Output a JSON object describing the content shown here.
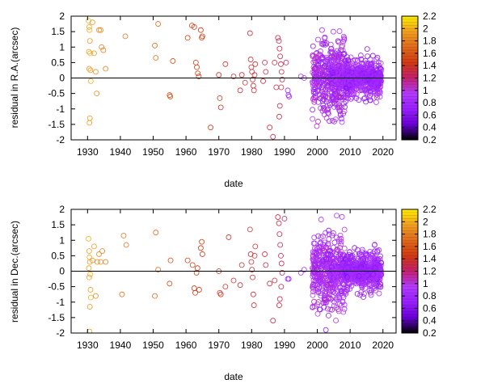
{
  "chart_data": [
    {
      "type": "scatter",
      "xlabel": "date",
      "ylabel": "residual in R.A.(arcsec)",
      "xlim": [
        1925,
        2024
      ],
      "ylim": [
        -2,
        2
      ],
      "xticks": [
        1930,
        1940,
        1950,
        1960,
        1970,
        1980,
        1990,
        2000,
        2010,
        2020
      ],
      "yticks": [
        -2,
        -1.5,
        -1,
        -0.5,
        0,
        0.5,
        1,
        1.5,
        2
      ],
      "zero_line": true,
      "grid": false,
      "marker": "open-circle",
      "colorbar": {
        "range": [
          0.2,
          2.2
        ],
        "ticks": [
          0.2,
          0.4,
          0.6,
          0.8,
          1,
          1.2,
          1.4,
          1.6,
          1.8,
          2,
          2.2
        ],
        "palette": [
          "#000000",
          "#6a00d8",
          "#9a20ff",
          "#b33bff",
          "#c4206e",
          "#d03a10",
          "#e06a1c",
          "#f0a020",
          "#ffee00"
        ]
      },
      "points": [
        [
          1930.3,
          1.85,
          2.0
        ],
        [
          1930.5,
          1.65,
          1.95
        ],
        [
          1930.6,
          1.55,
          2.0
        ],
        [
          1930.7,
          1.2,
          1.9
        ],
        [
          1930.4,
          0.85,
          1.95
        ],
        [
          1930.8,
          0.8,
          2.0
        ],
        [
          1930.5,
          0.3,
          1.9
        ],
        [
          1930.9,
          0.25,
          1.95
        ],
        [
          1931.0,
          -0.1,
          2.0
        ],
        [
          1930.7,
          -1.3,
          1.9
        ],
        [
          1930.6,
          -1.45,
          1.95
        ],
        [
          1931.5,
          1.8,
          1.9
        ],
        [
          1932.0,
          0.8,
          1.9
        ],
        [
          1932.5,
          0.2,
          1.85
        ],
        [
          1932.8,
          -0.5,
          1.85
        ],
        [
          1933.5,
          1.55,
          1.85
        ],
        [
          1934.0,
          1.55,
          1.85
        ],
        [
          1934.3,
          1.0,
          1.8
        ],
        [
          1934.8,
          0.9,
          1.8
        ],
        [
          1935.5,
          0.3,
          1.8
        ],
        [
          1941.5,
          1.35,
          1.75
        ],
        [
          1950.5,
          1.05,
          1.7
        ],
        [
          1950.8,
          0.65,
          1.7
        ],
        [
          1951.5,
          1.75,
          1.7
        ],
        [
          1955.0,
          -0.55,
          1.55
        ],
        [
          1955.2,
          -0.6,
          1.55
        ],
        [
          1956.0,
          0.55,
          1.55
        ],
        [
          1960.5,
          1.3,
          1.5
        ],
        [
          1961.8,
          1.7,
          1.5
        ],
        [
          1962.5,
          1.65,
          1.45
        ],
        [
          1963.0,
          0.5,
          1.45
        ],
        [
          1963.3,
          0.35,
          1.45
        ],
        [
          1963.6,
          0.15,
          1.45
        ],
        [
          1963.9,
          0.05,
          1.45
        ],
        [
          1964.5,
          1.55,
          1.45
        ],
        [
          1964.8,
          1.3,
          1.45
        ],
        [
          1965.0,
          1.35,
          1.45
        ],
        [
          1967.5,
          -1.6,
          1.45
        ],
        [
          1970.0,
          0.1,
          1.4
        ],
        [
          1970.3,
          -0.65,
          1.4
        ],
        [
          1970.6,
          -0.95,
          1.4
        ],
        [
          1972.0,
          0.45,
          1.4
        ],
        [
          1974.5,
          0.05,
          1.35
        ],
        [
          1976.5,
          -0.4,
          1.35
        ],
        [
          1977.0,
          0.1,
          1.35
        ],
        [
          1978.0,
          -0.15,
          1.35
        ],
        [
          1979.5,
          1.45,
          1.35
        ],
        [
          1979.7,
          0.6,
          1.35
        ],
        [
          1979.9,
          0.35,
          1.35
        ],
        [
          1980.1,
          0.2,
          1.35
        ],
        [
          1980.3,
          -0.05,
          1.35
        ],
        [
          1980.5,
          -0.25,
          1.35
        ],
        [
          1980.7,
          -0.4,
          1.35
        ],
        [
          1980.9,
          0.1,
          1.35
        ],
        [
          1981.1,
          0.45,
          1.35
        ],
        [
          1983.5,
          -0.1,
          1.3
        ],
        [
          1984.0,
          0.5,
          1.3
        ],
        [
          1984.3,
          0.2,
          1.3
        ],
        [
          1985.5,
          -1.6,
          1.3
        ],
        [
          1986.5,
          -1.9,
          1.3
        ],
        [
          1987.0,
          0.5,
          1.3
        ],
        [
          1987.5,
          -0.3,
          1.3
        ],
        [
          1988.0,
          1.3,
          1.3
        ],
        [
          1988.3,
          1.2,
          1.3
        ],
        [
          1988.5,
          0.95,
          1.3
        ],
        [
          1988.7,
          0.7,
          1.3
        ],
        [
          1988.9,
          0.45,
          1.3
        ],
        [
          1989.1,
          0.2,
          1.3
        ],
        [
          1989.3,
          -0.05,
          1.3
        ],
        [
          1989.0,
          -0.3,
          1.3
        ],
        [
          1988.6,
          -0.9,
          1.3
        ],
        [
          1988.4,
          -1.25,
          1.3
        ],
        [
          1990.5,
          0.5,
          1.25
        ],
        [
          1991.0,
          -0.4,
          0.8
        ],
        [
          1991.2,
          -0.55,
          0.8
        ],
        [
          1991.4,
          -0.6,
          0.8
        ],
        [
          1995.0,
          0.05,
          0.9
        ],
        [
          1996.0,
          0.0,
          0.85
        ]
      ],
      "dense_clusters": [
        {
          "x": [
            1998.5,
            2008.5
          ],
          "y_range": [
            -1.95,
            1.95
          ],
          "count": 430,
          "color_range": [
            0.6,
            1.1
          ]
        },
        {
          "x": [
            2004.0,
            2008.5
          ],
          "y_range": [
            -0.4,
            0.5
          ],
          "count": 160,
          "color_range": [
            0.6,
            1.0
          ]
        },
        {
          "x": [
            2008.5,
            2019.5
          ],
          "y_range": [
            -1.0,
            1.0
          ],
          "count": 420,
          "color_range": [
            0.6,
            1.0
          ]
        },
        {
          "x": [
            2008.5,
            2019.5
          ],
          "y_range": [
            -0.4,
            0.4
          ],
          "count": 220,
          "color_range": [
            0.6,
            0.9
          ]
        }
      ]
    },
    {
      "type": "scatter",
      "xlabel": "date",
      "ylabel": "residual in Dec.(arcsec)",
      "xlim": [
        1925,
        2024
      ],
      "ylim": [
        -2,
        2
      ],
      "xticks": [
        1930,
        1940,
        1950,
        1960,
        1970,
        1980,
        1990,
        2000,
        2010,
        2020
      ],
      "yticks": [
        -2,
        -1.5,
        -1,
        -0.5,
        0,
        0.5,
        1,
        1.5,
        2
      ],
      "zero_line": true,
      "grid": false,
      "marker": "open-circle",
      "colorbar": {
        "range": [
          0.2,
          2.2
        ],
        "ticks": [
          0.2,
          0.4,
          0.6,
          0.8,
          1,
          1.2,
          1.4,
          1.6,
          1.8,
          2,
          2.2
        ],
        "palette": [
          "#000000",
          "#6a00d8",
          "#9a20ff",
          "#b33bff",
          "#c4206e",
          "#d03a10",
          "#e06a1c",
          "#f0a020",
          "#ffee00"
        ]
      },
      "points": [
        [
          1930.3,
          1.05,
          2.0
        ],
        [
          1930.5,
          0.65,
          1.95
        ],
        [
          1930.6,
          0.45,
          2.0
        ],
        [
          1930.7,
          0.3,
          1.9
        ],
        [
          1930.4,
          0.1,
          1.95
        ],
        [
          1930.8,
          -0.1,
          2.0
        ],
        [
          1930.5,
          -0.2,
          1.9
        ],
        [
          1930.9,
          -0.6,
          1.95
        ],
        [
          1931.0,
          -0.85,
          2.0
        ],
        [
          1930.7,
          -1.15,
          1.9
        ],
        [
          1930.6,
          -1.95,
          1.95
        ],
        [
          1931.5,
          0.35,
          1.9
        ],
        [
          1932.0,
          0.8,
          1.9
        ],
        [
          1932.5,
          -0.8,
          1.85
        ],
        [
          1933.0,
          0.3,
          1.85
        ],
        [
          1933.5,
          0.55,
          1.85
        ],
        [
          1934.0,
          0.3,
          1.85
        ],
        [
          1934.5,
          0.65,
          1.8
        ],
        [
          1935.5,
          0.3,
          1.8
        ],
        [
          1940.5,
          -0.75,
          1.75
        ],
        [
          1941.0,
          1.15,
          1.75
        ],
        [
          1941.8,
          0.85,
          1.75
        ],
        [
          1950.5,
          -0.8,
          1.7
        ],
        [
          1950.8,
          1.25,
          1.7
        ],
        [
          1951.5,
          0.05,
          1.7
        ],
        [
          1955.0,
          -0.4,
          1.55
        ],
        [
          1955.3,
          0.35,
          1.55
        ],
        [
          1960.5,
          0.35,
          1.5
        ],
        [
          1962.0,
          0.2,
          1.5
        ],
        [
          1962.5,
          -0.55,
          1.45
        ],
        [
          1962.8,
          -0.7,
          1.45
        ],
        [
          1963.2,
          -0.05,
          1.45
        ],
        [
          1963.5,
          0.1,
          1.45
        ],
        [
          1964.0,
          -0.6,
          1.45
        ],
        [
          1964.5,
          0.75,
          1.45
        ],
        [
          1964.8,
          0.95,
          1.45
        ],
        [
          1965.0,
          0.55,
          1.45
        ],
        [
          1970.0,
          0.0,
          1.4
        ],
        [
          1970.3,
          -0.7,
          1.4
        ],
        [
          1970.6,
          -0.75,
          1.4
        ],
        [
          1972.0,
          -0.5,
          1.4
        ],
        [
          1973.0,
          1.1,
          1.4
        ],
        [
          1974.5,
          -0.3,
          1.35
        ],
        [
          1976.5,
          -0.45,
          1.35
        ],
        [
          1977.0,
          0.2,
          1.35
        ],
        [
          1979.5,
          1.35,
          1.35
        ],
        [
          1979.7,
          0.55,
          1.35
        ],
        [
          1979.9,
          0.3,
          1.35
        ],
        [
          1980.1,
          0.05,
          1.35
        ],
        [
          1980.3,
          -0.2,
          1.35
        ],
        [
          1980.5,
          -0.75,
          1.35
        ],
        [
          1980.7,
          -1.1,
          1.35
        ],
        [
          1980.9,
          0.5,
          1.35
        ],
        [
          1981.1,
          0.8,
          1.35
        ],
        [
          1984.0,
          0.55,
          1.3
        ],
        [
          1984.3,
          0.2,
          1.3
        ],
        [
          1985.5,
          -0.4,
          1.3
        ],
        [
          1986.5,
          -1.6,
          1.3
        ],
        [
          1987.0,
          -0.3,
          1.3
        ],
        [
          1988.0,
          1.75,
          1.3
        ],
        [
          1988.3,
          1.55,
          1.3
        ],
        [
          1988.5,
          1.2,
          1.3
        ],
        [
          1988.7,
          0.85,
          1.3
        ],
        [
          1988.9,
          0.5,
          1.3
        ],
        [
          1989.1,
          0.25,
          1.3
        ],
        [
          1989.3,
          -0.05,
          1.3
        ],
        [
          1989.0,
          -0.5,
          1.3
        ],
        [
          1988.6,
          -0.9,
          1.3
        ],
        [
          1988.4,
          -1.1,
          1.3
        ],
        [
          1990.0,
          1.7,
          1.25
        ],
        [
          1991.0,
          -0.25,
          0.8
        ],
        [
          1991.3,
          -0.25,
          0.8
        ],
        [
          1995.0,
          -0.05,
          0.9
        ],
        [
          1996.0,
          0.05,
          0.85
        ]
      ],
      "dense_clusters": [
        {
          "x": [
            1998.5,
            2008.5
          ],
          "y_range": [
            -1.9,
            1.85
          ],
          "count": 430,
          "color_range": [
            0.6,
            1.1
          ]
        },
        {
          "x": [
            2004.0,
            2008.5
          ],
          "y_range": [
            -0.4,
            0.4
          ],
          "count": 160,
          "color_range": [
            0.6,
            1.0
          ]
        },
        {
          "x": [
            2008.5,
            2019.5
          ],
          "y_range": [
            -1.0,
            1.0
          ],
          "count": 420,
          "color_range": [
            0.6,
            1.0
          ]
        },
        {
          "x": [
            2008.5,
            2019.5
          ],
          "y_range": [
            -0.4,
            0.4
          ],
          "count": 220,
          "color_range": [
            0.6,
            0.9
          ]
        }
      ]
    }
  ]
}
